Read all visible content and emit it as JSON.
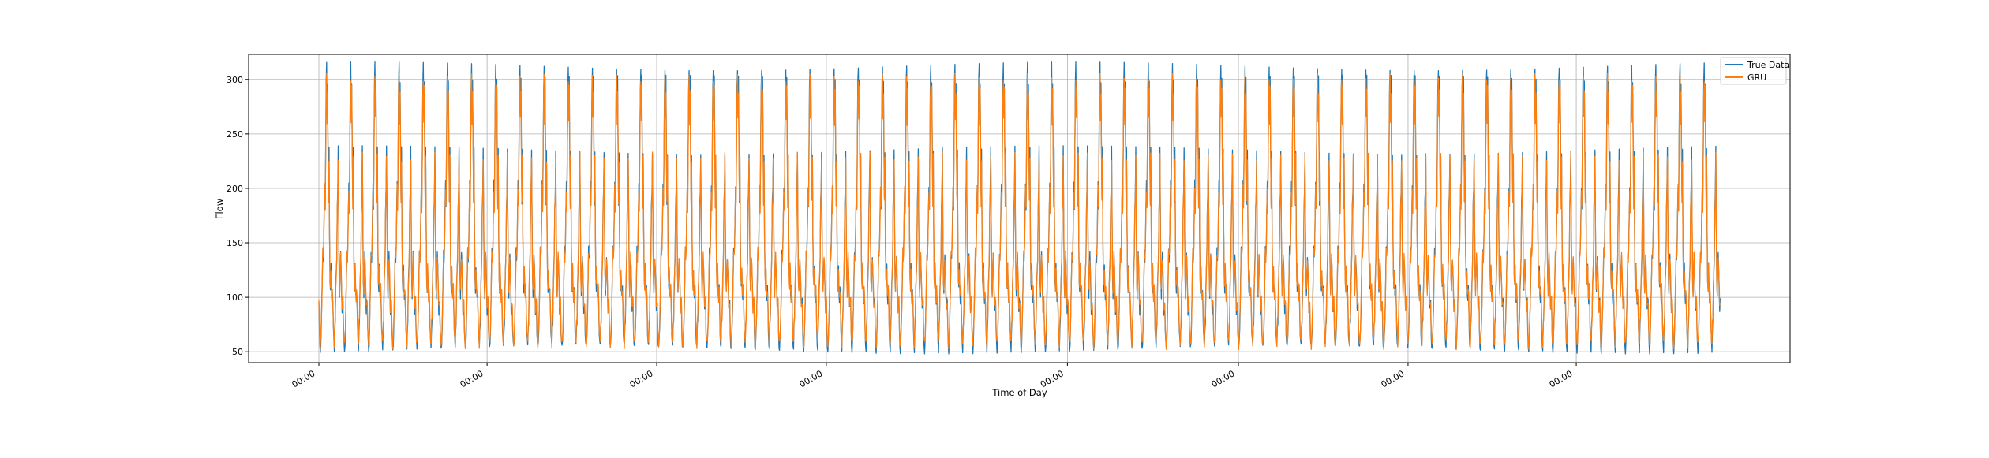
{
  "chart_data": {
    "type": "line",
    "title": "",
    "xlabel": "Time of Day",
    "ylabel": "Flow",
    "ylim": [
      40,
      323
    ],
    "grid": true,
    "legend_placement": "top-right",
    "colors": {
      "True Data": "#1f77b4",
      "GRU": "#ff7f0e"
    },
    "x_tick_labels": [
      "00:00",
      "00:00",
      "00:00",
      "00:00",
      "00:00",
      "00:00",
      "00:00",
      "00:00"
    ],
    "y_ticks": [
      50,
      100,
      150,
      200,
      250,
      300
    ],
    "cycle_count": 58,
    "cycle_profile_flow": [
      98,
      72,
      60,
      55,
      62,
      76,
      95,
      120,
      145,
      138,
      150,
      180,
      205,
      185,
      240,
      295,
      312,
      270,
      300,
      240,
      190,
      235,
      160,
      120,
      110,
      130,
      108,
      100,
      110,
      95,
      72,
      62,
      56,
      75,
      82,
      110,
      125,
      140,
      185,
      200,
      236,
      170,
      120,
      105,
      125,
      140,
      128,
      110,
      90,
      98
    ],
    "series": [
      {
        "name": "True Data",
        "profile_offset": 0,
        "min": 52,
        "max": 312
      },
      {
        "name": "GRU",
        "profile_offset": 0,
        "min": 56,
        "max": 302
      }
    ]
  }
}
